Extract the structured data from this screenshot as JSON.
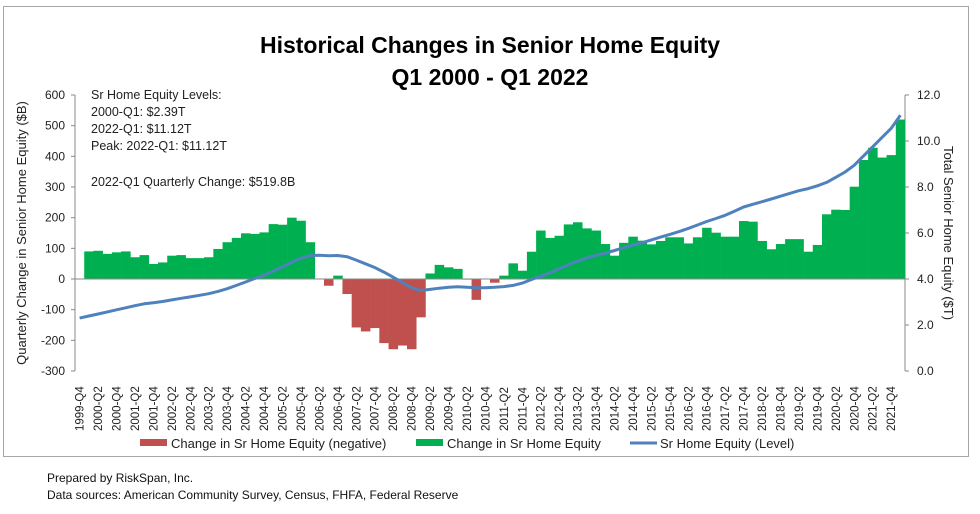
{
  "chart_data": {
    "type": "bar",
    "title": "Historical Changes in Senior Home Equity",
    "subtitle": "Q1 2000 - Q1 2022",
    "ylabel": "Quarterly Change in Senior Home Equity ($B)",
    "y2label": "Total Senior Home Equity ($T)",
    "ylim": [
      -300,
      600
    ],
    "y2lim": [
      0,
      12
    ],
    "yticks": [
      "600",
      "500",
      "400",
      "300",
      "200",
      "100",
      "0",
      "-100",
      "-200",
      "-300"
    ],
    "y2ticks": [
      "12.0",
      "10.0",
      "8.0",
      "6.0",
      "4.0",
      "2.0",
      "0.0"
    ],
    "annotations": [
      "Sr Home Equity Levels:",
      "2000-Q1: $2.39T",
      "2022-Q1: $11.12T",
      "Peak: 2022-Q1: $11.12T",
      "2022-Q1 Quarterly Change: $519.8B"
    ],
    "legend": [
      "Change in Sr Home Equity (negative)",
      "Change in Sr Home Equity",
      "Sr Home Equity (Level)"
    ],
    "legend_position": "bottom",
    "colors": {
      "negative": "#C0504D",
      "positive": "#00B050",
      "line": "#4F81BD"
    },
    "start_quarter": "1999-Q4",
    "quarters_count": 90,
    "change": [
      0,
      90,
      92,
      82,
      87,
      90,
      71,
      78,
      49,
      54,
      76,
      78,
      68,
      68,
      71,
      98,
      120,
      134,
      149,
      147,
      152,
      179,
      177,
      200,
      190,
      120,
      1,
      -22,
      11,
      -49,
      -158,
      -171,
      -160,
      -209,
      -229,
      -217,
      -229,
      -125,
      18,
      46,
      38,
      33,
      -2,
      -68,
      0,
      -12,
      11,
      51,
      27,
      89,
      158,
      134,
      141,
      178,
      185,
      165,
      158,
      114,
      76,
      118,
      138,
      125,
      113,
      124,
      136,
      136,
      116,
      136,
      167,
      151,
      138,
      138,
      189,
      187,
      124,
      97,
      114,
      130,
      130,
      89,
      111,
      211,
      226,
      225,
      301,
      388,
      428,
      396,
      404,
      520
    ],
    "level": [
      2.3,
      2.39,
      2.48,
      2.57,
      2.66,
      2.75,
      2.84,
      2.92,
      2.97,
      3.02,
      3.09,
      3.16,
      3.22,
      3.29,
      3.36,
      3.46,
      3.58,
      3.72,
      3.87,
      4.02,
      4.17,
      4.35,
      4.53,
      4.72,
      4.9,
      5.02,
      5.03,
      5.01,
      5.02,
      4.97,
      4.82,
      4.66,
      4.5,
      4.3,
      4.08,
      3.85,
      3.62,
      3.5,
      3.55,
      3.6,
      3.64,
      3.66,
      3.64,
      3.62,
      3.62,
      3.64,
      3.67,
      3.72,
      3.82,
      3.98,
      4.12,
      4.27,
      4.45,
      4.62,
      4.78,
      4.92,
      5.03,
      5.12,
      5.24,
      5.36,
      5.48,
      5.58,
      5.7,
      5.82,
      5.94,
      6.06,
      6.2,
      6.35,
      6.5,
      6.63,
      6.77,
      6.95,
      7.13,
      7.25,
      7.36,
      7.48,
      7.6,
      7.72,
      7.84,
      7.93,
      8.05,
      8.2,
      8.42,
      8.65,
      8.95,
      9.35,
      9.75,
      10.15,
      10.55,
      11.12
    ]
  },
  "footer": {
    "prepared": "Prepared by RiskSpan, Inc.",
    "sources": "Data sources: American Community Survey, Census, FHFA, Federal Reserve"
  }
}
